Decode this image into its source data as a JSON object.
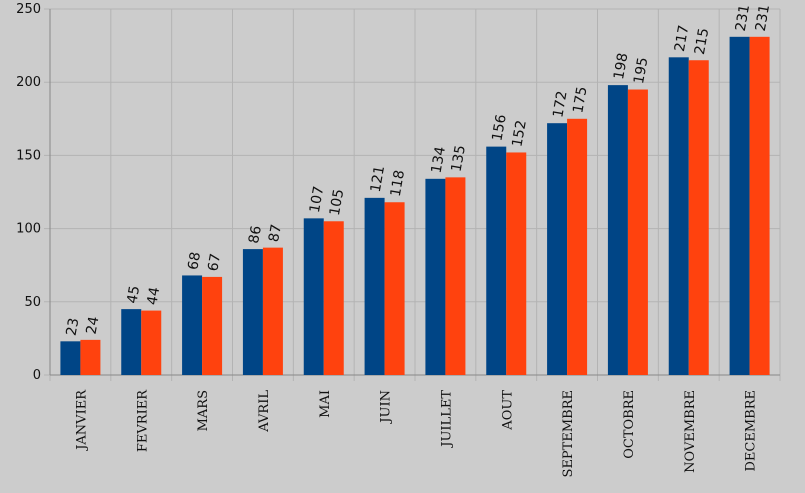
{
  "chart_data": {
    "type": "bar",
    "title": "",
    "xlabel": "",
    "ylabel": "",
    "ylim": [
      0,
      250
    ],
    "yticks": [
      0,
      50,
      100,
      150,
      200,
      250
    ],
    "grid": true,
    "categories": [
      "JANVIER",
      "FEVRIER",
      "MARS",
      "AVRIL",
      "MAI",
      "JUIN",
      "JUILLET",
      "AOUT",
      "SEPTEMBRE",
      "OCTOBRE",
      "NOVEMBRE",
      "DECEMBRE"
    ],
    "series": [
      {
        "color": "#004586",
        "values": [
          23,
          45,
          68,
          86,
          107,
          121,
          134,
          156,
          172,
          198,
          217,
          231
        ]
      },
      {
        "color": "#ff420e",
        "values": [
          24,
          44,
          67,
          87,
          105,
          118,
          135,
          152,
          175,
          195,
          215,
          231
        ]
      }
    ]
  },
  "colors": {
    "background": "#cccccc",
    "grid": "#b3b3b3",
    "axis": "#888888"
  }
}
